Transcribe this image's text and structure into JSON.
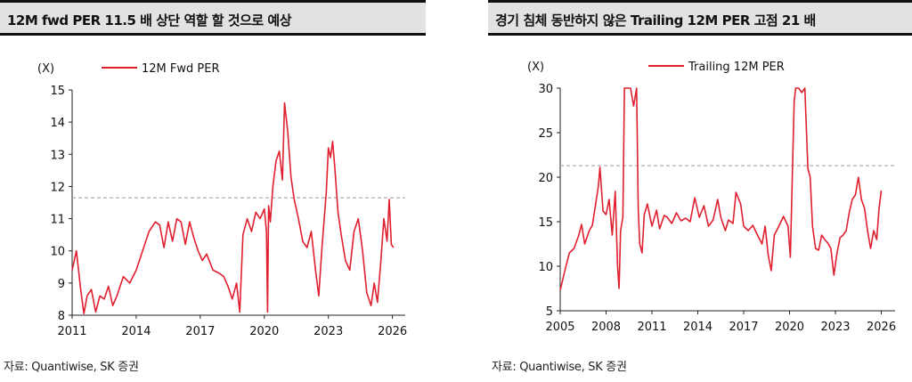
{
  "colors": {
    "series": "#e0202f",
    "reference": "#999999",
    "axis": "#222222",
    "header_bg": "#e2e2e2"
  },
  "chart_data": [
    {
      "type": "line",
      "title": "12M fwd PER 11.5 배 상단 역할 할 것으로 예상",
      "unit": "(X)",
      "source": "자료: Quantiwise, SK 증권",
      "legend": [
        "12M Fwd PER"
      ],
      "xlim": [
        2011,
        2026.6
      ],
      "ylim": [
        8,
        15
      ],
      "xticks": [
        "2011",
        "2014",
        "2017",
        "2020",
        "2023",
        "2026"
      ],
      "yticks": [
        "8",
        "9",
        "10",
        "11",
        "12",
        "13",
        "14",
        "15"
      ],
      "reference_line": 11.65,
      "series": [
        {
          "name": "12M Fwd PER",
          "x": [
            2011.0,
            2011.2,
            2011.4,
            2011.55,
            2011.7,
            2011.9,
            2012.1,
            2012.3,
            2012.5,
            2012.7,
            2012.9,
            2013.1,
            2013.4,
            2013.7,
            2014.0,
            2014.3,
            2014.6,
            2014.9,
            2015.1,
            2015.3,
            2015.5,
            2015.7,
            2015.9,
            2016.1,
            2016.3,
            2016.5,
            2016.7,
            2016.9,
            2017.1,
            2017.3,
            2017.6,
            2017.9,
            2018.1,
            2018.3,
            2018.5,
            2018.7,
            2018.85,
            2019.0,
            2019.2,
            2019.4,
            2019.6,
            2019.8,
            2020.0,
            2020.1,
            2020.15,
            2020.2,
            2020.28,
            2020.4,
            2020.55,
            2020.7,
            2020.85,
            2020.95,
            2021.1,
            2021.25,
            2021.4,
            2021.6,
            2021.8,
            2022.0,
            2022.2,
            2022.4,
            2022.55,
            2022.7,
            2022.9,
            2023.0,
            2023.1,
            2023.2,
            2023.3,
            2023.45,
            2023.6,
            2023.8,
            2024.0,
            2024.2,
            2024.4,
            2024.6,
            2024.8,
            2025.0,
            2025.15,
            2025.3,
            2025.45,
            2025.6,
            2025.75,
            2025.85,
            2025.95,
            2026.05
          ],
          "values": [
            9.4,
            10.0,
            8.8,
            8.05,
            8.6,
            8.8,
            8.1,
            8.6,
            8.5,
            8.9,
            8.3,
            8.6,
            9.2,
            9.0,
            9.4,
            10.0,
            10.6,
            10.9,
            10.8,
            10.1,
            10.9,
            10.3,
            11.0,
            10.9,
            10.2,
            10.9,
            10.4,
            10.0,
            9.7,
            9.9,
            9.4,
            9.3,
            9.2,
            8.9,
            8.5,
            9.0,
            8.1,
            10.5,
            11.0,
            10.6,
            11.2,
            11.0,
            11.3,
            10.6,
            8.1,
            11.4,
            10.9,
            12.0,
            12.8,
            13.1,
            12.2,
            14.6,
            13.7,
            12.3,
            11.6,
            11.0,
            10.3,
            10.1,
            10.6,
            9.4,
            8.6,
            10.1,
            11.8,
            13.2,
            12.9,
            13.4,
            12.6,
            11.2,
            10.5,
            9.7,
            9.4,
            10.6,
            11.0,
            10.0,
            8.7,
            8.3,
            9.0,
            8.4,
            9.6,
            11.0,
            10.3,
            11.6,
            10.2,
            10.1
          ]
        }
      ]
    },
    {
      "type": "line",
      "title": "경기 침체 동반하지 않은 Trailing 12M PER 고점 21 배",
      "unit": "(X)",
      "source": "자료: Quantiwise, SK 증권",
      "legend": [
        "Trailing 12M PER"
      ],
      "xlim": [
        2005,
        2026.9
      ],
      "ylim": [
        5,
        30
      ],
      "xticks": [
        "2005",
        "2008",
        "2011",
        "2014",
        "2017",
        "2020",
        "2023",
        "2026"
      ],
      "yticks": [
        "5",
        "10",
        "15",
        "20",
        "25",
        "30"
      ],
      "reference_line": 21.3,
      "series": [
        {
          "name": "Trailing 12M PER",
          "x": [
            2005.0,
            2005.3,
            2005.6,
            2005.9,
            2006.2,
            2006.4,
            2006.6,
            2006.9,
            2007.1,
            2007.3,
            2007.5,
            2007.6,
            2007.8,
            2008.0,
            2008.2,
            2008.4,
            2008.6,
            2008.75,
            2008.85,
            2008.95,
            2009.1,
            2009.2,
            2009.4,
            2009.6,
            2009.8,
            2010.0,
            2010.1,
            2010.2,
            2010.35,
            2010.5,
            2010.7,
            2011.0,
            2011.3,
            2011.5,
            2011.8,
            2012.0,
            2012.3,
            2012.6,
            2012.9,
            2013.2,
            2013.5,
            2013.8,
            2014.1,
            2014.4,
            2014.7,
            2015.0,
            2015.3,
            2015.5,
            2015.8,
            2016.0,
            2016.3,
            2016.5,
            2016.8,
            2017.0,
            2017.3,
            2017.6,
            2017.9,
            2018.2,
            2018.4,
            2018.6,
            2018.8,
            2019.0,
            2019.3,
            2019.6,
            2019.9,
            2020.05,
            2020.15,
            2020.3,
            2020.4,
            2020.6,
            2020.8,
            2021.0,
            2021.2,
            2021.35,
            2021.5,
            2021.7,
            2021.9,
            2022.1,
            2022.3,
            2022.5,
            2022.7,
            2022.9,
            2023.1,
            2023.3,
            2023.5,
            2023.7,
            2023.9,
            2024.1,
            2024.3,
            2024.5,
            2024.7,
            2024.9,
            2025.1,
            2025.3,
            2025.5,
            2025.7,
            2025.85,
            2026.0
          ],
          "values": [
            7.3,
            9.5,
            11.5,
            12.0,
            13.4,
            14.7,
            12.5,
            14.0,
            14.6,
            16.8,
            19.0,
            21.1,
            16.2,
            15.8,
            17.5,
            13.5,
            18.4,
            10.0,
            7.5,
            14.0,
            15.5,
            30.0,
            30.0,
            30.0,
            28.0,
            30.0,
            16.5,
            12.5,
            11.5,
            15.8,
            17.0,
            14.5,
            16.3,
            14.2,
            15.7,
            15.5,
            14.8,
            16.0,
            15.1,
            15.4,
            15.0,
            17.7,
            15.5,
            16.8,
            14.5,
            15.2,
            17.5,
            15.5,
            14.0,
            15.2,
            14.8,
            18.3,
            17.0,
            14.5,
            14.0,
            14.6,
            13.5,
            12.5,
            14.5,
            11.3,
            9.5,
            13.5,
            14.5,
            15.6,
            14.5,
            11.0,
            18.0,
            28.5,
            30.0,
            30.0,
            29.5,
            30.0,
            21.0,
            20.0,
            14.5,
            12.0,
            11.8,
            13.5,
            13.0,
            12.6,
            12.0,
            9.0,
            11.5,
            13.2,
            13.5,
            14.0,
            16.0,
            17.5,
            18.0,
            20.0,
            17.5,
            16.5,
            14.0,
            12.0,
            14.0,
            13.0,
            16.5,
            18.5
          ]
        }
      ]
    }
  ]
}
